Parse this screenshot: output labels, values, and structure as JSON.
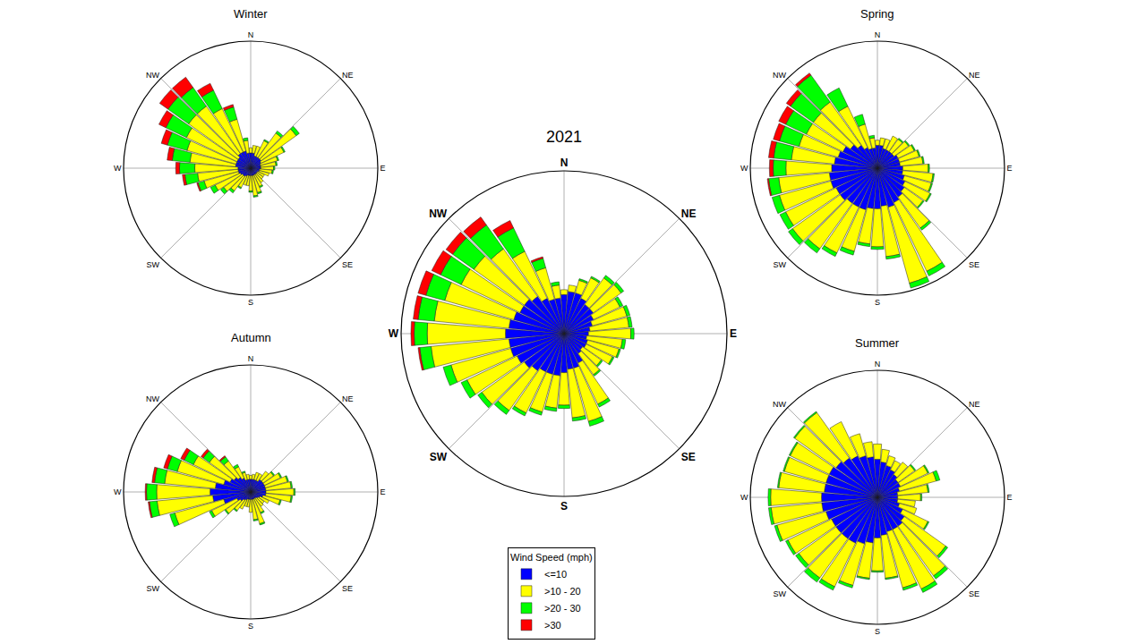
{
  "chart_data": [
    {
      "type": "barpolar",
      "title": "2021",
      "stacked": true,
      "grid": true,
      "tick_labels": "x",
      "legend": "bottom",
      "legend_title": "Wind Speed (mph)",
      "x": [
        0,
        10,
        20,
        30,
        40,
        50,
        60,
        70,
        80,
        90,
        100,
        110,
        120,
        130,
        140,
        150,
        160,
        170,
        180,
        190,
        200,
        210,
        220,
        230,
        240,
        250,
        260,
        270,
        280,
        290,
        300,
        310,
        320,
        330,
        340,
        350
      ],
      "xticks": [
        {
          "value": 0,
          "label": "N"
        },
        {
          "value": 45,
          "label": "NE"
        },
        {
          "value": 90,
          "label": "E"
        },
        {
          "value": 135,
          "label": "SE"
        },
        {
          "value": 180,
          "label": "S"
        },
        {
          "value": 225,
          "label": "SW"
        },
        {
          "value": 270,
          "label": "W"
        },
        {
          "value": 315,
          "label": "NW"
        }
      ],
      "ylim": [
        0,
        100
      ],
      "series": [
        {
          "name": "<=10",
          "color": "#0000ff",
          "values": [
            24,
            26,
            26,
            24,
            22,
            22,
            20,
            18,
            16,
            15,
            14,
            15,
            15,
            14,
            15,
            20,
            22,
            22,
            24,
            26,
            26,
            26,
            28,
            30,
            32,
            34,
            34,
            36,
            34,
            32,
            30,
            30,
            28,
            24,
            22,
            22
          ]
        },
        {
          "name": ">10 - 20",
          "color": "#ffff00",
          "values": [
            3,
            4,
            8,
            14,
            20,
            21,
            18,
            22,
            24,
            26,
            22,
            20,
            18,
            14,
            16,
            28,
            34,
            30,
            20,
            20,
            24,
            28,
            30,
            32,
            34,
            38,
            48,
            48,
            46,
            44,
            40,
            38,
            36,
            32,
            20,
            8
          ]
        },
        {
          "name": ">20 - 30",
          "color": "#00ff00",
          "values": [
            0,
            0,
            1,
            1,
            2,
            2,
            2,
            2,
            2,
            2,
            2,
            1,
            1,
            1,
            1,
            2,
            3,
            2,
            2,
            2,
            2,
            2,
            3,
            3,
            4,
            5,
            7,
            8,
            10,
            12,
            14,
            16,
            18,
            16,
            6,
            2
          ]
        },
        {
          "name": ">30",
          "color": "#ff0000",
          "values": [
            0,
            0,
            0,
            0,
            0,
            0,
            0,
            0,
            0,
            0,
            0,
            0,
            0,
            0,
            0,
            0,
            0,
            0,
            0,
            0,
            0,
            0,
            0,
            0,
            0,
            0,
            1,
            2,
            3,
            5,
            6,
            5,
            6,
            5,
            1,
            0
          ]
        }
      ]
    },
    {
      "type": "barpolar",
      "title": "Winter",
      "stacked": true,
      "grid": true,
      "tick_labels": "x",
      "x": [
        0,
        10,
        20,
        30,
        40,
        50,
        60,
        70,
        80,
        90,
        100,
        110,
        120,
        130,
        140,
        150,
        160,
        170,
        180,
        190,
        200,
        210,
        220,
        230,
        240,
        250,
        260,
        270,
        280,
        290,
        300,
        310,
        320,
        330,
        340,
        350
      ],
      "xticks": [
        {
          "value": 0,
          "label": "N"
        },
        {
          "value": 45,
          "label": "NE"
        },
        {
          "value": 90,
          "label": "E"
        },
        {
          "value": 135,
          "label": "SE"
        },
        {
          "value": 180,
          "label": "S"
        },
        {
          "value": 225,
          "label": "SW"
        },
        {
          "value": 270,
          "label": "W"
        },
        {
          "value": 315,
          "label": "NW"
        }
      ],
      "ylim": [
        0,
        100
      ],
      "series": [
        {
          "name": "<=10",
          "color": "#0000ff",
          "values": [
            12,
            12,
            10,
            10,
            10,
            10,
            9,
            8,
            8,
            8,
            7,
            7,
            6,
            6,
            6,
            6,
            6,
            6,
            6,
            6,
            6,
            7,
            8,
            8,
            9,
            10,
            10,
            10,
            12,
            12,
            12,
            12,
            14,
            14,
            14,
            12
          ]
        },
        {
          "name": ">10 - 20",
          "color": "#ffff00",
          "values": [
            4,
            6,
            8,
            14,
            24,
            34,
            20,
            14,
            12,
            10,
            10,
            8,
            6,
            6,
            8,
            10,
            14,
            16,
            12,
            8,
            8,
            10,
            14,
            18,
            22,
            28,
            32,
            34,
            36,
            40,
            44,
            48,
            46,
            38,
            26,
            10
          ]
        },
        {
          "name": ">20 - 30",
          "color": "#00ff00",
          "values": [
            0,
            0,
            0,
            1,
            2,
            3,
            1,
            1,
            1,
            1,
            1,
            0,
            0,
            0,
            0,
            1,
            1,
            1,
            1,
            0,
            0,
            1,
            2,
            3,
            4,
            5,
            10,
            12,
            14,
            16,
            18,
            20,
            18,
            16,
            10,
            2
          ]
        },
        {
          "name": ">30",
          "color": "#ff0000",
          "values": [
            0,
            0,
            0,
            0,
            0,
            0,
            0,
            0,
            0,
            0,
            0,
            0,
            0,
            0,
            0,
            0,
            0,
            0,
            0,
            0,
            0,
            0,
            0,
            0,
            0,
            1,
            2,
            3,
            4,
            5,
            6,
            8,
            10,
            6,
            2,
            0
          ]
        }
      ]
    },
    {
      "type": "barpolar",
      "title": "Spring",
      "stacked": true,
      "grid": true,
      "tick_labels": "x",
      "x": [
        0,
        10,
        20,
        30,
        40,
        50,
        60,
        70,
        80,
        90,
        100,
        110,
        120,
        130,
        140,
        150,
        160,
        170,
        180,
        190,
        200,
        210,
        220,
        230,
        240,
        250,
        260,
        270,
        280,
        290,
        300,
        310,
        320,
        330,
        340,
        350
      ],
      "xticks": [
        {
          "value": 0,
          "label": "N"
        },
        {
          "value": 45,
          "label": "NE"
        },
        {
          "value": 90,
          "label": "E"
        },
        {
          "value": 135,
          "label": "SE"
        },
        {
          "value": 180,
          "label": "S"
        },
        {
          "value": 225,
          "label": "SW"
        },
        {
          "value": 270,
          "label": "W"
        },
        {
          "value": 315,
          "label": "NW"
        }
      ],
      "ylim": [
        0,
        100
      ],
      "series": [
        {
          "name": "<=10",
          "color": "#0000ff",
          "values": [
            18,
            18,
            16,
            16,
            16,
            16,
            18,
            18,
            18,
            20,
            20,
            22,
            24,
            26,
            28,
            30,
            32,
            30,
            32,
            32,
            34,
            34,
            34,
            36,
            36,
            38,
            38,
            36,
            34,
            32,
            30,
            26,
            22,
            18,
            16,
            16
          ]
        },
        {
          "name": ">10 - 20",
          "color": "#ffff00",
          "values": [
            4,
            6,
            8,
            12,
            12,
            14,
            14,
            16,
            18,
            20,
            24,
            22,
            22,
            18,
            30,
            60,
            62,
            40,
            30,
            28,
            34,
            40,
            44,
            46,
            44,
            42,
            40,
            36,
            34,
            32,
            32,
            36,
            42,
            36,
            20,
            8
          ]
        },
        {
          "name": ">20 - 30",
          "color": "#00ff00",
          "values": [
            0,
            0,
            0,
            0,
            1,
            1,
            1,
            1,
            1,
            1,
            1,
            1,
            1,
            1,
            2,
            4,
            4,
            2,
            2,
            2,
            3,
            3,
            4,
            4,
            5,
            6,
            8,
            10,
            14,
            16,
            18,
            22,
            26,
            16,
            8,
            2
          ]
        },
        {
          "name": ">30",
          "color": "#ff0000",
          "values": [
            0,
            0,
            0,
            0,
            0,
            0,
            0,
            0,
            0,
            0,
            0,
            0,
            0,
            0,
            0,
            0,
            0,
            0,
            0,
            0,
            0,
            0,
            0,
            0,
            0,
            0,
            1,
            3,
            4,
            5,
            6,
            4,
            2,
            0,
            0,
            0
          ]
        }
      ]
    },
    {
      "type": "barpolar",
      "title": "Autumn",
      "stacked": true,
      "grid": true,
      "tick_labels": "x",
      "x": [
        0,
        10,
        20,
        30,
        40,
        50,
        60,
        70,
        80,
        90,
        100,
        110,
        120,
        130,
        140,
        150,
        160,
        170,
        180,
        190,
        200,
        210,
        220,
        230,
        240,
        250,
        260,
        270,
        280,
        290,
        300,
        310,
        320,
        330,
        340,
        350
      ],
      "xticks": [
        {
          "value": 0,
          "label": "N"
        },
        {
          "value": 45,
          "label": "NE"
        },
        {
          "value": 90,
          "label": "E"
        },
        {
          "value": 135,
          "label": "SE"
        },
        {
          "value": 180,
          "label": "S"
        },
        {
          "value": 225,
          "label": "SW"
        },
        {
          "value": 270,
          "label": "W"
        },
        {
          "value": 315,
          "label": "NW"
        }
      ],
      "ylim": [
        0,
        100
      ],
      "series": [
        {
          "name": "<=10",
          "color": "#0000ff",
          "values": [
            10,
            10,
            10,
            10,
            12,
            12,
            12,
            12,
            12,
            12,
            12,
            10,
            8,
            7,
            6,
            6,
            6,
            6,
            6,
            6,
            6,
            7,
            8,
            10,
            12,
            22,
            30,
            32,
            28,
            22,
            18,
            16,
            14,
            12,
            10,
            10
          ]
        },
        {
          "name": ">10 - 20",
          "color": "#ffff00",
          "values": [
            3,
            4,
            6,
            6,
            8,
            10,
            14,
            18,
            20,
            22,
            20,
            14,
            8,
            6,
            8,
            12,
            20,
            16,
            10,
            6,
            6,
            8,
            10,
            14,
            22,
            40,
            44,
            42,
            40,
            38,
            32,
            24,
            16,
            10,
            6,
            4
          ]
        },
        {
          "name": ">20 - 30",
          "color": "#00ff00",
          "values": [
            0,
            0,
            0,
            0,
            0,
            1,
            1,
            1,
            1,
            1,
            1,
            1,
            0,
            0,
            0,
            1,
            1,
            1,
            0,
            0,
            0,
            0,
            1,
            1,
            2,
            4,
            6,
            8,
            8,
            8,
            8,
            6,
            4,
            2,
            1,
            0
          ]
        },
        {
          "name": ">30",
          "color": "#ff0000",
          "values": [
            0,
            0,
            0,
            0,
            0,
            0,
            0,
            0,
            0,
            0,
            0,
            0,
            0,
            0,
            0,
            0,
            0,
            0,
            0,
            0,
            0,
            0,
            0,
            0,
            0,
            0,
            1,
            1,
            2,
            3,
            3,
            2,
            1,
            0,
            0,
            0
          ]
        }
      ]
    },
    {
      "type": "barpolar",
      "title": "Summer",
      "stacked": true,
      "grid": true,
      "tick_labels": "x",
      "x": [
        0,
        10,
        20,
        30,
        40,
        50,
        60,
        70,
        80,
        90,
        100,
        110,
        120,
        130,
        140,
        150,
        160,
        170,
        180,
        190,
        200,
        210,
        220,
        230,
        240,
        250,
        260,
        270,
        280,
        290,
        300,
        310,
        320,
        330,
        340,
        350
      ],
      "xticks": [
        {
          "value": 0,
          "label": "N"
        },
        {
          "value": 45,
          "label": "NE"
        },
        {
          "value": 90,
          "label": "E"
        },
        {
          "value": 135,
          "label": "SE"
        },
        {
          "value": 180,
          "label": "S"
        },
        {
          "value": 225,
          "label": "SW"
        },
        {
          "value": 270,
          "label": "W"
        },
        {
          "value": 315,
          "label": "NW"
        }
      ],
      "ylim": [
        0,
        100
      ],
      "series": [
        {
          "name": "<=10",
          "color": "#0000ff",
          "values": [
            30,
            28,
            26,
            24,
            22,
            20,
            20,
            18,
            16,
            16,
            16,
            18,
            22,
            26,
            28,
            28,
            28,
            30,
            32,
            36,
            38,
            40,
            40,
            40,
            40,
            42,
            44,
            44,
            42,
            42,
            42,
            40,
            38,
            36,
            34,
            32
          ]
        },
        {
          "name": ">10 - 20",
          "color": "#ffff00",
          "values": [
            12,
            10,
            8,
            8,
            12,
            16,
            24,
            30,
            24,
            18,
            14,
            14,
            22,
            40,
            48,
            52,
            46,
            34,
            26,
            28,
            34,
            38,
            38,
            36,
            38,
            40,
            40,
            40,
            36,
            34,
            34,
            40,
            44,
            30,
            18,
            12
          ]
        },
        {
          "name": ">20 - 30",
          "color": "#00ff00",
          "values": [
            0,
            0,
            0,
            0,
            0,
            1,
            1,
            3,
            1,
            1,
            0,
            0,
            1,
            2,
            3,
            3,
            2,
            1,
            1,
            1,
            2,
            3,
            4,
            3,
            2,
            2,
            2,
            2,
            1,
            1,
            1,
            1,
            1,
            0,
            0,
            0
          ]
        },
        {
          "name": ">30",
          "color": "#ff0000",
          "values": [
            0,
            0,
            0,
            0,
            0,
            0,
            0,
            0,
            0,
            0,
            0,
            0,
            0,
            0,
            0,
            0,
            0,
            0,
            0,
            0,
            0,
            0,
            0,
            0,
            0,
            0,
            0,
            0,
            0,
            0,
            0,
            0,
            0,
            0,
            0,
            0
          ]
        }
      ]
    }
  ]
}
